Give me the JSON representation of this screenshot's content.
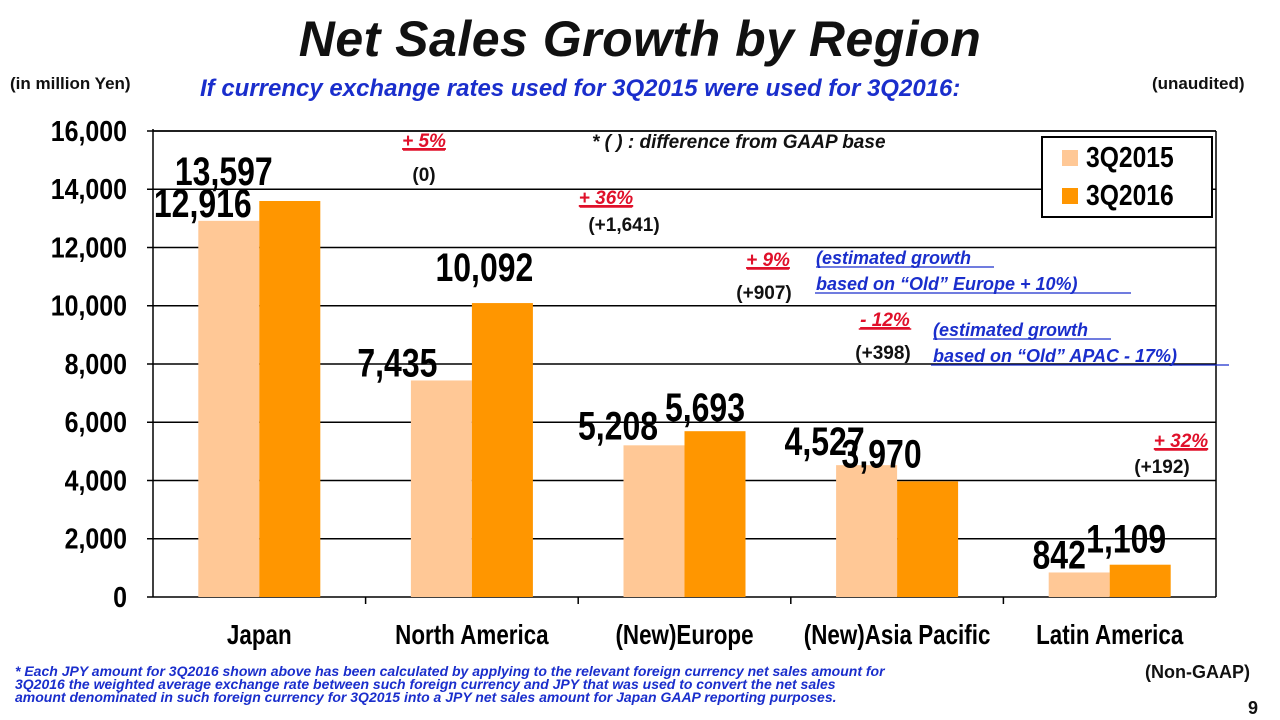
{
  "title": "Net Sales Growth by Region",
  "unit_note": "(in million Yen)",
  "subtitle": "If currency exchange rates used for 3Q2015 were used for 3Q2016:",
  "audit_note": "(unaudited)",
  "non_gaap_note": "(Non-GAAP)",
  "page_number": "9",
  "footnote_lines": [
    "* Each JPY amount for 3Q2016 shown above has been calculated by applying to the relevant foreign currency net sales amount for",
    "3Q2016 the weighted average exchange rate between such foreign currency and JPY that was used to convert the net sales",
    "amount denominated in such foreign currency for 3Q2015 into a JPY net sales amount for Japan GAAP reporting purposes."
  ],
  "colors": {
    "series_2015": "#FFC896",
    "series_2016": "#FF9600",
    "growth_red": "#e0102a",
    "note_blue": "#1a2ecc"
  },
  "chart_data": {
    "type": "bar",
    "categories": [
      "Japan",
      "North America",
      "(New)Europe",
      "(New)Asia Pacific",
      "Latin America"
    ],
    "series": [
      {
        "name": "3Q2015",
        "values": [
          12916,
          7435,
          5208,
          4527,
          842
        ],
        "labels": [
          "12,916",
          "7,435",
          "5,208",
          "4,527",
          "842"
        ]
      },
      {
        "name": "3Q2016",
        "values": [
          13597,
          10092,
          5693,
          3970,
          1109
        ],
        "labels": [
          "13,597",
          "10,092",
          "5,693",
          "3,970",
          "1,109"
        ]
      }
    ],
    "ylim": [
      0,
      16000
    ],
    "yticks": [
      0,
      2000,
      4000,
      6000,
      8000,
      10000,
      12000,
      14000,
      16000
    ],
    "ytick_labels": [
      "0",
      "2,000",
      "4,000",
      "6,000",
      "8,000",
      "10,000",
      "12,000",
      "14,000",
      "16,000"
    ],
    "grid": true,
    "legend_position": "top-right",
    "growth_pct": [
      "+ 5%",
      "+ 36%",
      "+ 9%",
      "- 12%",
      "+ 32%"
    ],
    "gaap_diff": [
      "(0)",
      "(+1,641)",
      "(+907)",
      "(+398)",
      "(+192)"
    ],
    "estimated_notes": [
      {
        "region": "(New)Europe",
        "lines": [
          "(estimated growth",
          " based on “Old” Europe + 10%)"
        ]
      },
      {
        "region": "(New)Asia Pacific",
        "lines": [
          "(estimated growth",
          " based on “Old” APAC - 17%)"
        ]
      }
    ],
    "legend_note": "* (  ) : difference from GAAP base"
  }
}
